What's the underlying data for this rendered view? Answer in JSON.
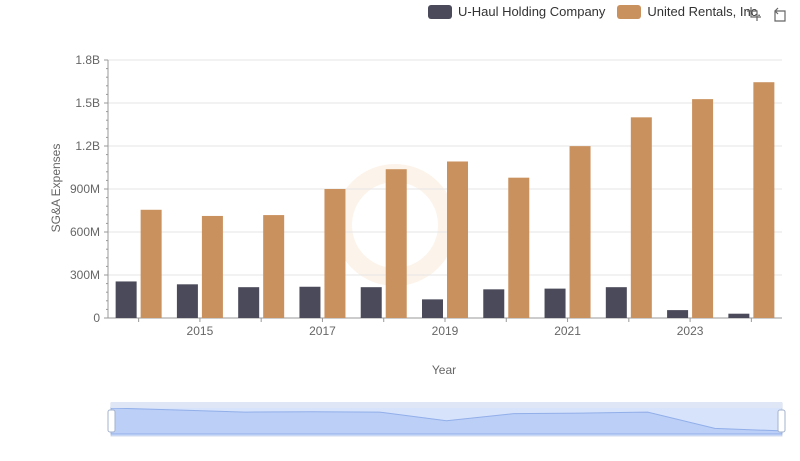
{
  "chart_data": {
    "type": "bar",
    "xlabel": "Year",
    "ylabel": "SG&A Expenses",
    "categories": [
      "2014",
      "2015",
      "2016",
      "2017",
      "2018",
      "2019",
      "2020",
      "2021",
      "2022",
      "2023",
      "2024"
    ],
    "x_tick_labels": [
      "2015",
      "2017",
      "2019",
      "2021",
      "2023"
    ],
    "y_tick_labels": [
      "0",
      "300M",
      "600M",
      "900M",
      "1.2B",
      "1.5B",
      "1.8B"
    ],
    "ylim": [
      0,
      1800000000
    ],
    "grid": true,
    "legend_position": "top-right",
    "series": [
      {
        "name": "U-Haul Holding Company",
        "color": "#4a4a5a",
        "values": [
          255000000,
          235000000,
          215000000,
          218000000,
          215000000,
          130000000,
          200000000,
          205000000,
          215000000,
          55000000,
          30000000
        ]
      },
      {
        "name": "United Rentals, Inc.",
        "color": "#c9915e",
        "values": [
          755000000,
          712000000,
          718000000,
          900000000,
          1038000000,
          1092000000,
          979000000,
          1199000000,
          1400000000,
          1527000000,
          1645000000
        ]
      }
    ]
  },
  "toolbox": {
    "zoom_icon": "zoom-icon",
    "restore_icon": "restore-icon"
  }
}
